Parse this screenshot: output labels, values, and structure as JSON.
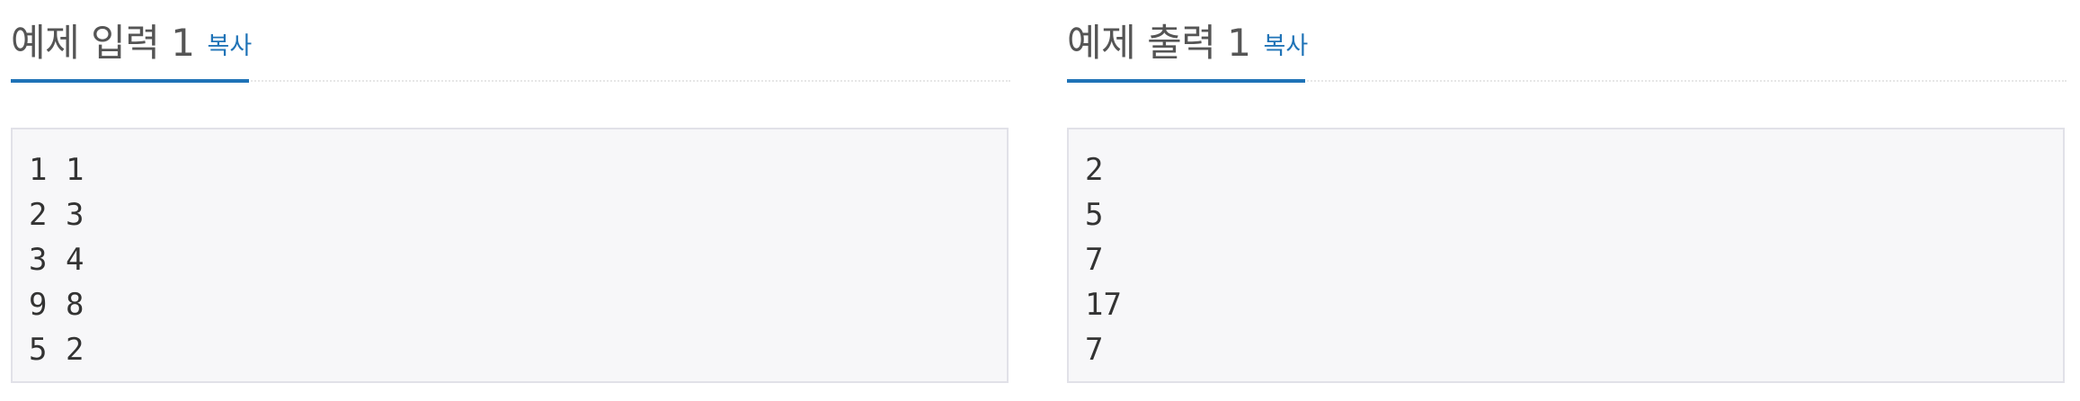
{
  "sample_input": {
    "title": "예제 입력 1",
    "copy_label": "복사",
    "lines": [
      "1 1",
      "2 3",
      "3 4",
      "9 8",
      "5 2"
    ]
  },
  "sample_output": {
    "title": "예제 출력 1",
    "copy_label": "복사",
    "lines": [
      "2",
      "5",
      "7",
      "17",
      "7"
    ]
  },
  "colors": {
    "accent": "#1f73b7",
    "box_background": "#f7f7f9",
    "box_border": "#e1e1e8",
    "title_text": "#555555"
  }
}
